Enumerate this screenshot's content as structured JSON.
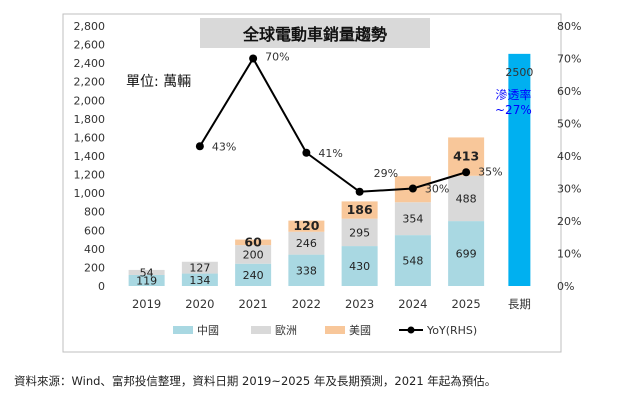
{
  "footer": {
    "source_note": "資料來源：Wind、富邦投信整理，資料日期 2019~2025 年及長期預測，2021 年起為預估。"
  },
  "colors": {
    "china": "#a9d8e2",
    "europe": "#d9d9d9",
    "usa": "#f8c79a",
    "long_term": "#00b0f0",
    "yoy_line": "#000000",
    "title_box": "#d9d9d9",
    "penetration_text": "#0000ff"
  },
  "chart_data": {
    "type": "bar",
    "title": "全球電動車銷量趨勢",
    "unit_label": "單位: 萬輛",
    "categories": [
      "2019",
      "2020",
      "2021",
      "2022",
      "2023",
      "2024",
      "2025",
      "長期"
    ],
    "series": [
      {
        "name": "中國",
        "values": [
          119,
          134,
          240,
          338,
          430,
          548,
          699,
          null
        ]
      },
      {
        "name": "歐洲",
        "values": [
          54,
          127,
          200,
          246,
          295,
          354,
          488,
          null
        ]
      },
      {
        "name": "美國",
        "values": [
          null,
          null,
          60,
          120,
          186,
          280,
          413,
          null
        ]
      }
    ],
    "stack_labels": {
      "中國": [
        "119",
        "134",
        "240",
        "338",
        "430",
        "548",
        "699",
        ""
      ],
      "歐洲": [
        "54",
        "127",
        "200",
        "246",
        "295",
        "354",
        "488",
        ""
      ],
      "美國": [
        "",
        "",
        "60",
        "120",
        "186",
        "",
        "413",
        ""
      ]
    },
    "long_term": {
      "category": "長期",
      "value": 2500,
      "label": "2500",
      "annotation": "滲透率~27%"
    },
    "yoy": {
      "name": "YoY(RHS)",
      "values": [
        null,
        43,
        70,
        41,
        29,
        30,
        35,
        null
      ],
      "labels": [
        "",
        "43%",
        "70%",
        "41%",
        "29%",
        "30%",
        "35%",
        ""
      ]
    },
    "y_left": {
      "min": 0,
      "max": 2800,
      "step": 200,
      "ticks": [
        "0",
        "200",
        "400",
        "600",
        "800",
        "1,000",
        "1,200",
        "1,400",
        "1,600",
        "1,800",
        "2,000",
        "2,200",
        "2,400",
        "2,600",
        "2,800"
      ]
    },
    "y_right": {
      "min": 0,
      "max": 80,
      "step": 10,
      "ticks": [
        "0%",
        "10%",
        "20%",
        "30%",
        "40%",
        "50%",
        "60%",
        "70%",
        "80%"
      ]
    },
    "legend": {
      "position": "bottom",
      "items": [
        {
          "label": "中國",
          "kind": "box",
          "color": "#a9d8e2"
        },
        {
          "label": "歐洲",
          "kind": "box",
          "color": "#d9d9d9"
        },
        {
          "label": "美國",
          "kind": "box",
          "color": "#f8c79a"
        },
        {
          "label": "YoY(RHS)",
          "kind": "line",
          "color": "#000000"
        }
      ]
    },
    "grid": false
  }
}
